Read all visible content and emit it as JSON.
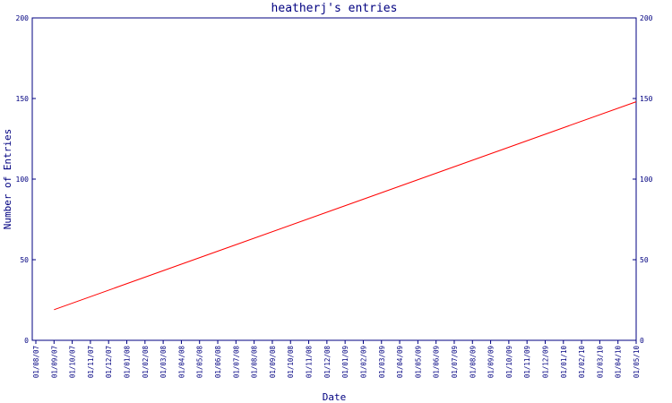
{
  "chart_data": {
    "type": "line",
    "title": "heatherj's entries",
    "xlabel": "Date",
    "ylabel": "Number of Entries",
    "ylim": [
      0,
      200
    ],
    "y_ticks": [
      0,
      50,
      100,
      150,
      200
    ],
    "categories": [
      "01/08/07",
      "01/09/07",
      "01/10/07",
      "01/11/07",
      "01/12/07",
      "01/01/08",
      "01/02/08",
      "01/03/08",
      "01/04/08",
      "01/05/08",
      "01/06/08",
      "01/07/08",
      "01/08/08",
      "01/09/08",
      "01/10/08",
      "01/11/08",
      "01/12/08",
      "01/01/09",
      "01/02/09",
      "01/03/09",
      "01/04/09",
      "01/05/09",
      "01/06/09",
      "01/07/09",
      "01/08/09",
      "01/09/09",
      "01/10/09",
      "01/11/09",
      "01/12/09",
      "01/01/10",
      "01/02/10",
      "01/03/10",
      "01/04/10",
      "01/05/10"
    ],
    "series": [
      {
        "color": "#ff0000",
        "points": [
          [
            "01/09/07",
            19
          ],
          [
            "01/05/10",
            148
          ]
        ]
      }
    ],
    "grid": false,
    "legend": "none",
    "axis_color": "#000080",
    "right_axis": true
  }
}
